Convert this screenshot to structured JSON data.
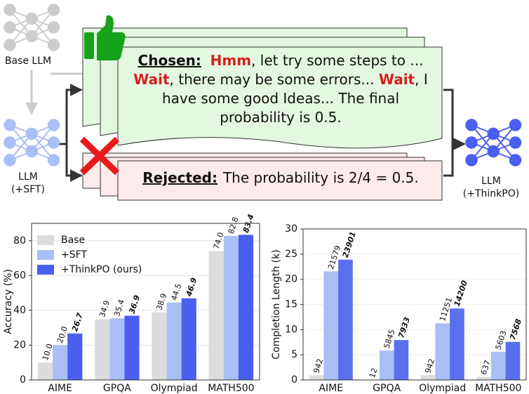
{
  "diagram": {
    "base_llm": "Base LLM",
    "sft_llm": [
      "LLM",
      "(+SFT)"
    ],
    "output_llm": [
      "LLM",
      "(+ThinkPO)"
    ],
    "chosen_label": "Chosen:",
    "chosen_lines": [
      [
        {
          "text": "Hmm",
          "red": true
        },
        {
          "text": ", let try some steps to ...",
          "red": false
        }
      ],
      [
        {
          "text": "Wait",
          "red": true
        },
        {
          "text": ", there may be some errors... ",
          "red": false
        },
        {
          "text": "Wait",
          "red": true
        },
        {
          "text": ", I",
          "red": false
        }
      ],
      [
        {
          "text": "have some good Ideas... The final",
          "red": false
        }
      ],
      [
        {
          "text": "probability is 0.5.",
          "red": false
        }
      ]
    ],
    "rejected_label": "Rejected:",
    "rejected_text": "The probability is 2/4 = 0.5."
  },
  "chart_data": [
    {
      "type": "bar",
      "ylabel": "Accuracy (%)",
      "categories": [
        "AIME",
        "GPQA",
        "Olympiad",
        "MATH500"
      ],
      "series": [
        {
          "name": "Base",
          "color": "#dcdcdc",
          "values": [
            10.0,
            34.9,
            38.9,
            74.0
          ],
          "value_labels": [
            "10.0",
            "34.9",
            "38.9",
            "74.0"
          ],
          "bold": false
        },
        {
          "name": "+SFT",
          "color": "#a9bff5",
          "values": [
            20.0,
            35.4,
            44.5,
            82.8
          ],
          "value_labels": [
            "20.0",
            "35.4",
            "44.5",
            "82.8"
          ],
          "bold": false
        },
        {
          "name": "+ThinkPO (ours)",
          "color": "#4a5ef0",
          "values": [
            26.7,
            36.9,
            46.9,
            83.4
          ],
          "value_labels": [
            "26.7",
            "36.9",
            "46.9",
            "83.4"
          ],
          "bold": true
        }
      ],
      "ylim": [
        0,
        90
      ],
      "yticks": [
        0,
        20,
        40,
        60,
        80
      ],
      "grid": true,
      "legend": "upper left"
    },
    {
      "type": "bar",
      "ylabel": "Completion Length (k)",
      "categories": [
        "AIME",
        "GPQA",
        "Olympiad",
        "MATH500"
      ],
      "series": [
        {
          "name": "Base",
          "color": "#dcdcdc",
          "values": [
            0.942,
            0.012,
            0.942,
            0.637
          ],
          "value_labels": [
            "942",
            "12",
            "942",
            "637"
          ],
          "bold": false
        },
        {
          "name": "+SFT",
          "color": "#a9bff5",
          "values": [
            21.579,
            5.845,
            11.251,
            5.603
          ],
          "value_labels": [
            "21579",
            "5845",
            "11251",
            "5603"
          ],
          "bold": false
        },
        {
          "name": "+ThinkPO",
          "color": "#5a6fee",
          "values": [
            23.901,
            7.933,
            14.2,
            7.568
          ],
          "value_labels": [
            "23901",
            "7933",
            "14200",
            "7568"
          ],
          "bold": true
        }
      ],
      "ylim": [
        0,
        30
      ],
      "yticks": [
        0,
        5,
        10,
        15,
        20,
        25,
        30
      ],
      "grid": true,
      "legend": "none"
    }
  ]
}
